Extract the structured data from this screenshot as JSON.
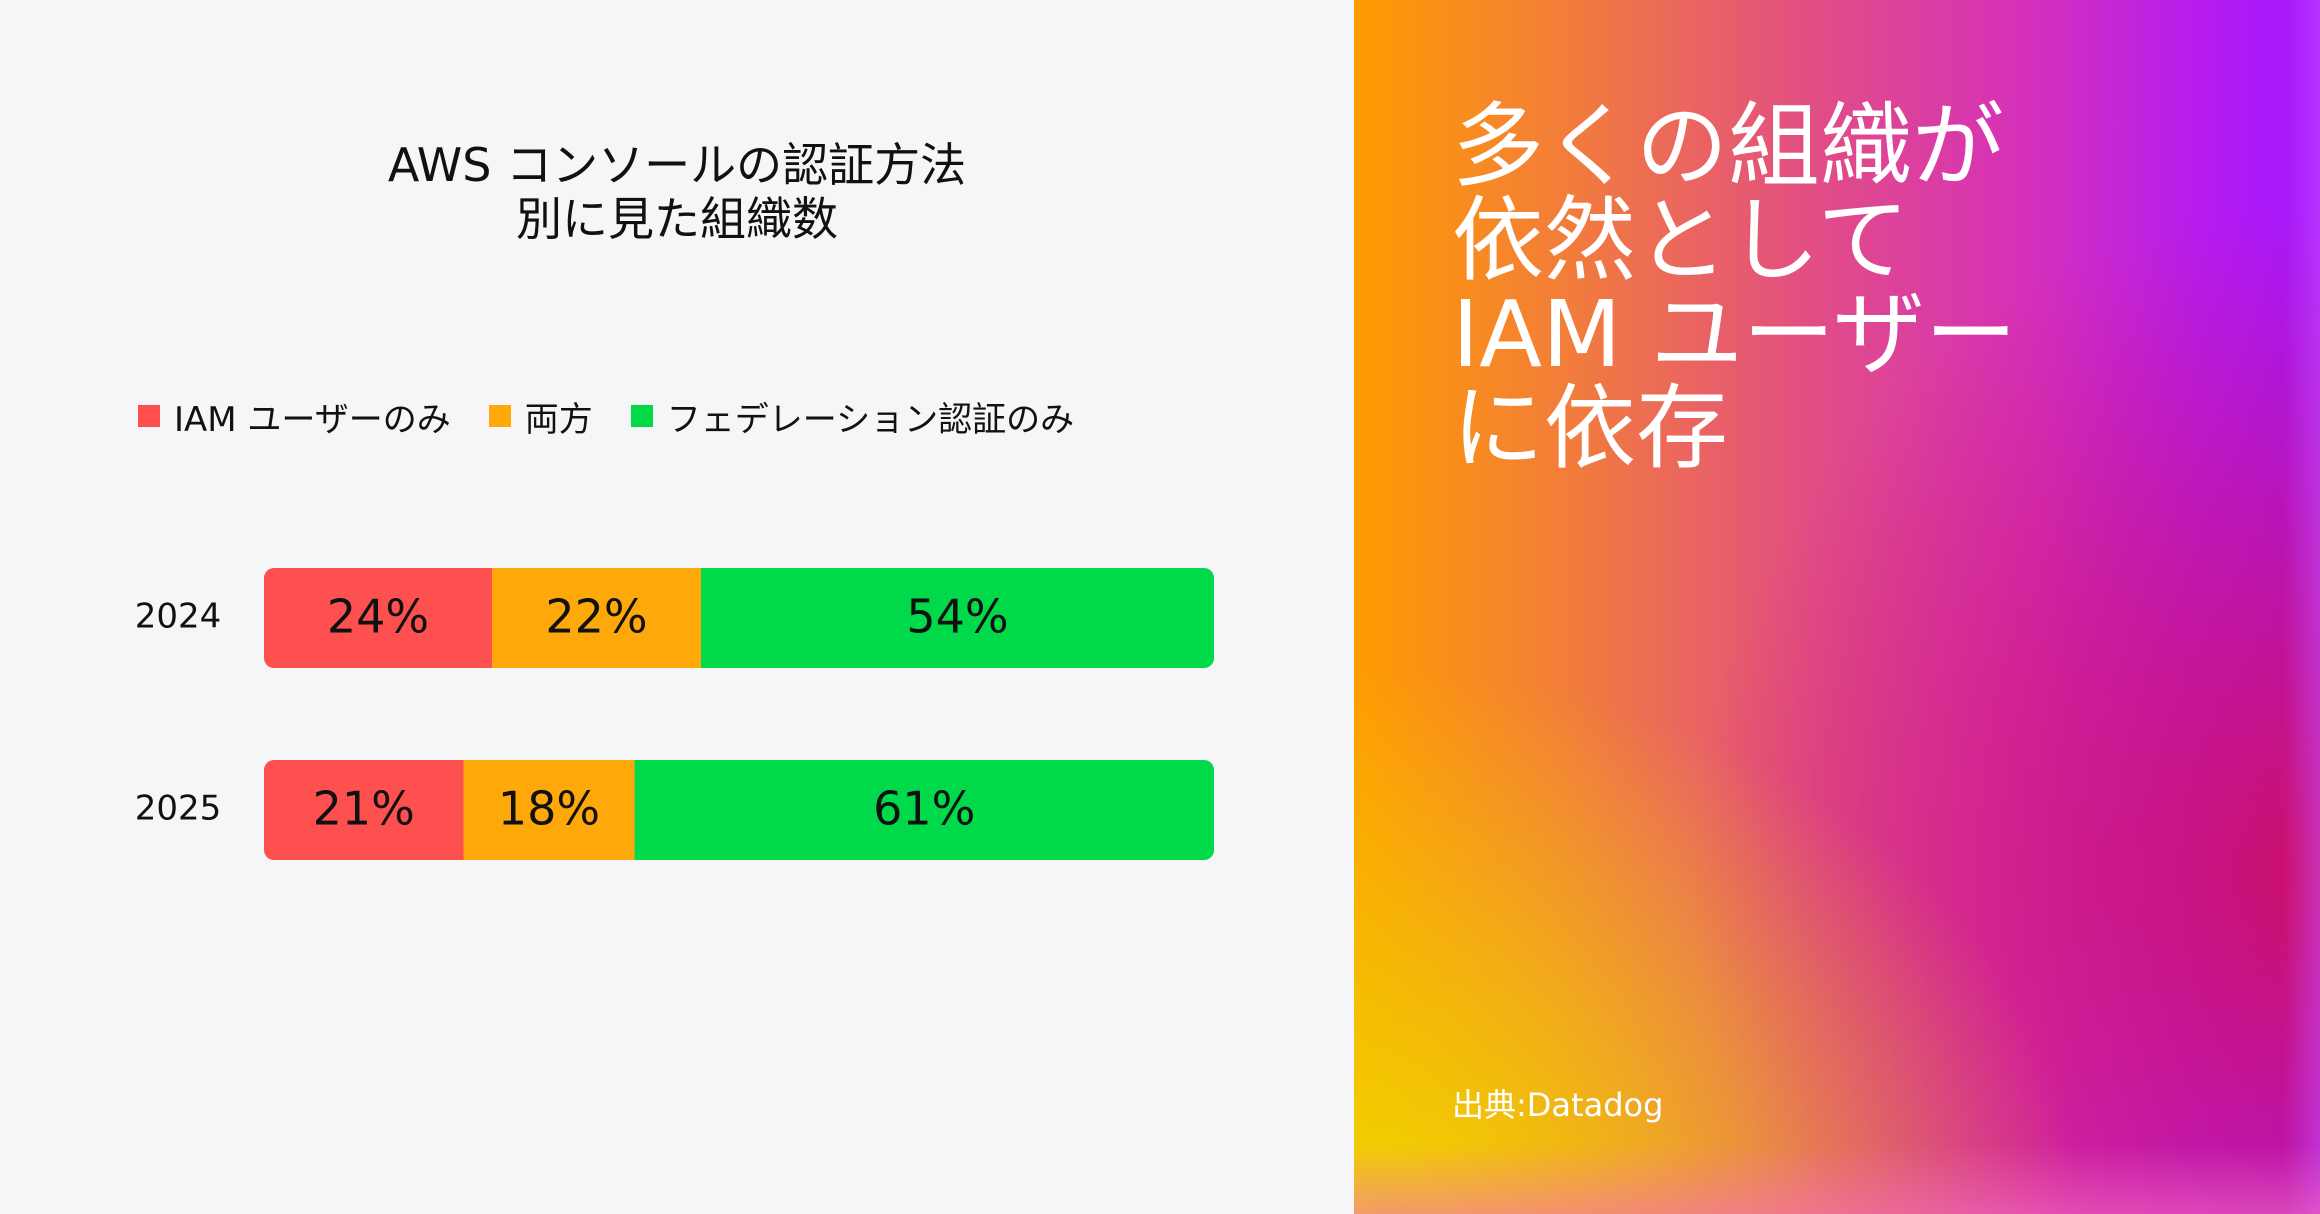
{
  "chart_data": {
    "type": "bar",
    "orientation": "horizontal",
    "stacked": true,
    "unit": "%",
    "title": [
      "AWS コンソールの認証方法",
      "別に見た組織数"
    ],
    "categories": [
      "2024",
      "2025"
    ],
    "series": [
      {
        "name": "IAM ユーザーのみ",
        "color": "#ff5050",
        "values": [
          24,
          21
        ],
        "labels": [
          "24%",
          "21%"
        ]
      },
      {
        "name": "両方",
        "color": "#ffa80a",
        "values": [
          22,
          18
        ],
        "labels": [
          "22%",
          "18%"
        ]
      },
      {
        "name": "フェデレーション認証のみ",
        "color": "#00d94a",
        "values": [
          54,
          61
        ],
        "labels": [
          "54%",
          "61%"
        ]
      }
    ],
    "xlim": [
      0,
      100
    ],
    "grid": false,
    "legend": "top-left"
  },
  "headline": {
    "lines": [
      "多くの組織が",
      "依然として",
      "IAM ユーザー",
      "に依存"
    ]
  },
  "source": "出典:Datadog"
}
